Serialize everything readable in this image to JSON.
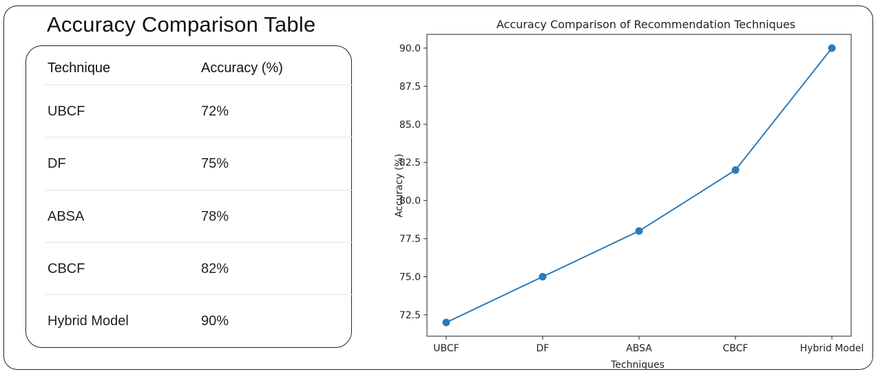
{
  "table": {
    "title": "Accuracy Comparison Table",
    "headers": {
      "technique": "Technique",
      "accuracy": "Accuracy (%)"
    },
    "rows": [
      {
        "technique": "UBCF",
        "accuracy": "72%"
      },
      {
        "technique": "DF",
        "accuracy": "75%"
      },
      {
        "technique": "ABSA",
        "accuracy": "78%"
      },
      {
        "technique": "CBCF",
        "accuracy": "82%"
      },
      {
        "technique": "Hybrid Model",
        "accuracy": "90%"
      }
    ]
  },
  "chart_data": {
    "type": "line",
    "title": "Accuracy Comparison of Recommendation Techniques",
    "xlabel": "Techniques",
    "ylabel": "Accuracy (%)",
    "categories": [
      "UBCF",
      "DF",
      "ABSA",
      "CBCF",
      "Hybrid Model"
    ],
    "values": [
      72,
      75,
      78,
      82,
      90
    ],
    "ylim": [
      71.1,
      90.9
    ],
    "yticks": [
      "72.5",
      "75.0",
      "77.5",
      "80.0",
      "82.5",
      "85.0",
      "87.5",
      "90.0"
    ],
    "marker": "circle",
    "grid": false,
    "color": "#2b7bba"
  }
}
